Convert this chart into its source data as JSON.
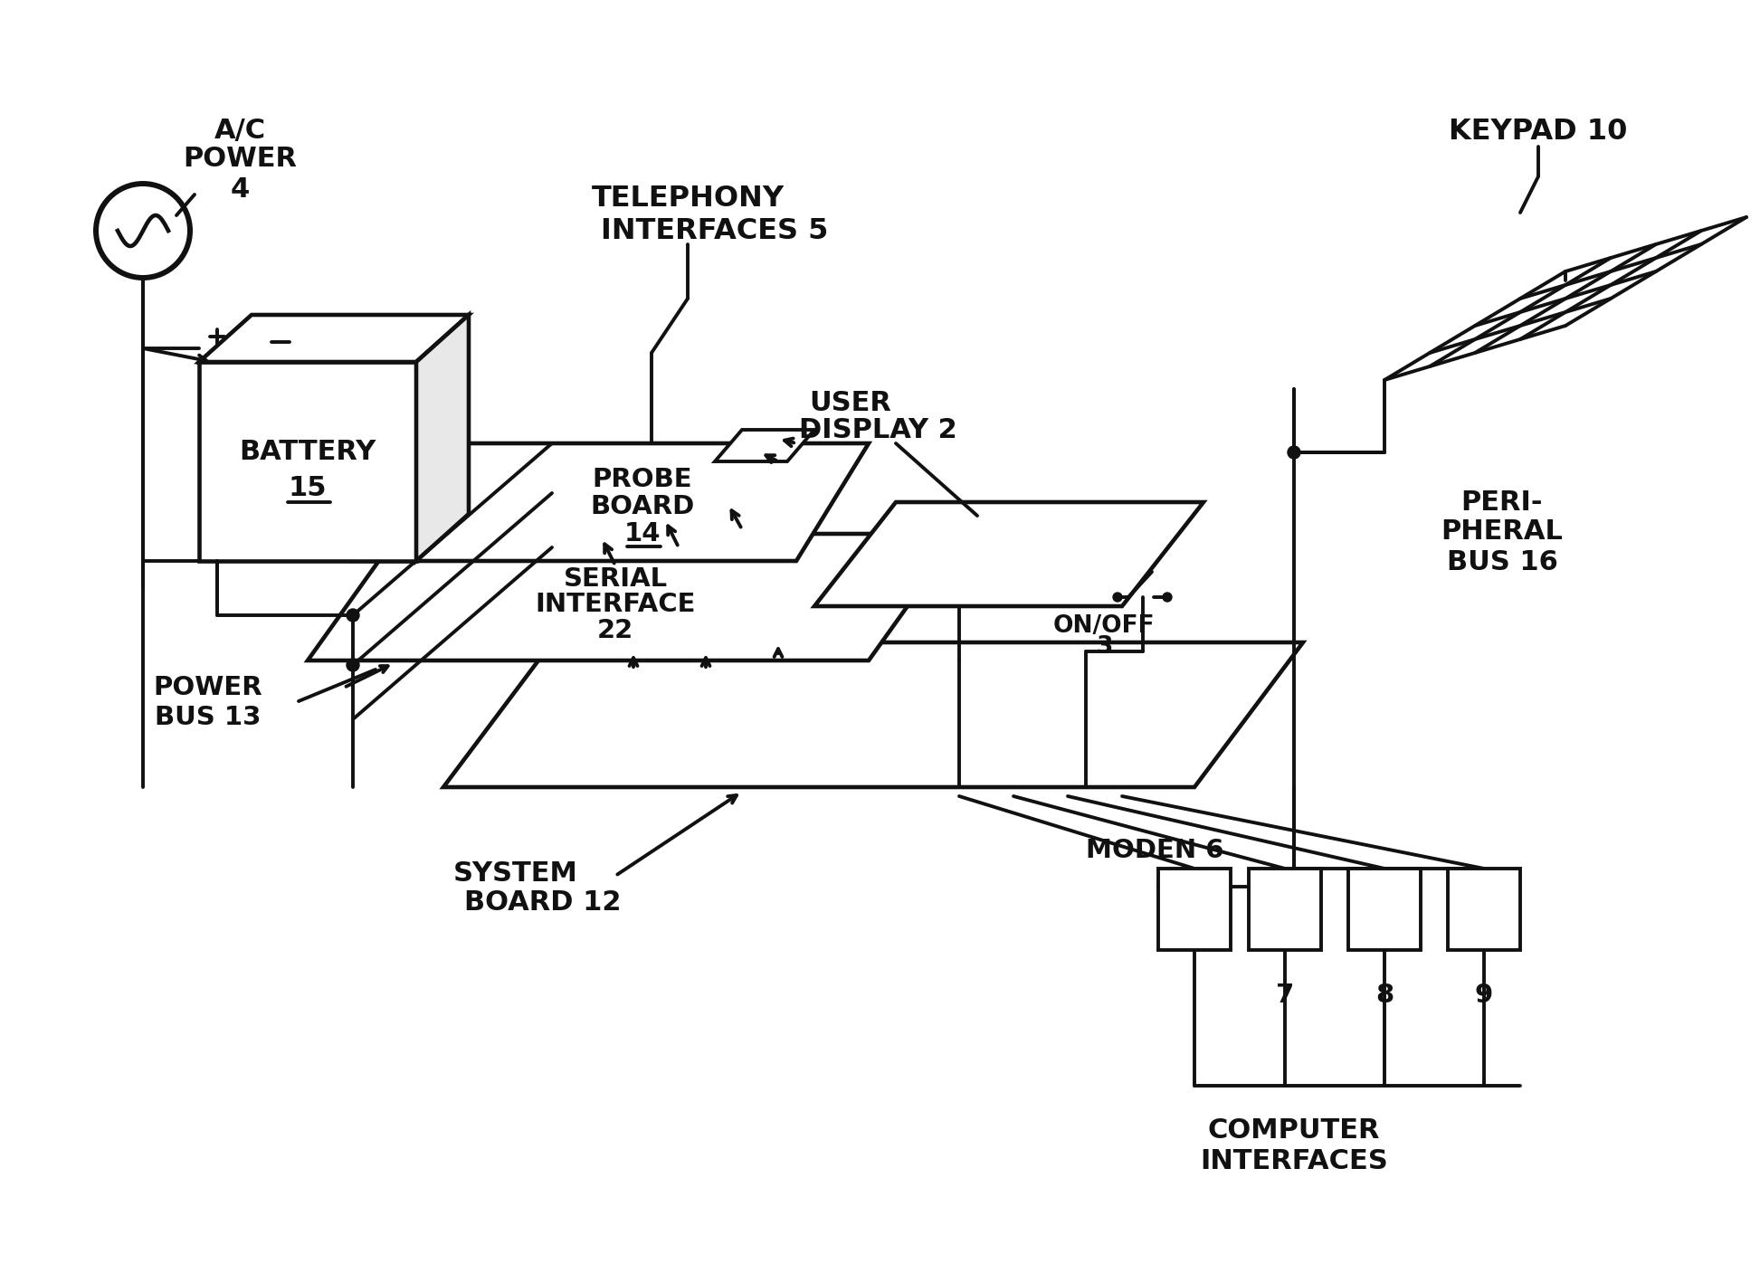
{
  "bg_color": "#ffffff",
  "line_color": "#111111",
  "text_color": "#111111",
  "fig_width": 19.45,
  "fig_height": 14.07,
  "lw": 2.8,
  "labels": {
    "ac_power_line1": "A/C",
    "ac_power_line2": "POWER",
    "ac_power_line3": "4",
    "battery_line1": "BATTERY",
    "battery_line2": "15",
    "probe_line1": "PROBE",
    "probe_line2": "BOARD",
    "probe_line3": "14",
    "serial_line1": "SERIAL",
    "serial_line2": "INTERFACE",
    "serial_line3": "22",
    "system_line1": "SYSTEM",
    "system_line2": "BOARD 12",
    "telephony_line1": "TELEPHONY",
    "telephony_line2": "INTERFACES 5",
    "user_display_line1": "USER",
    "user_display_line2": "DISPLAY 2",
    "on_off_line1": "ON/OFF",
    "on_off_line2": "3",
    "keypad": "KEYPAD 10",
    "power_bus_line1": "POWER",
    "power_bus_line2": "BUS 13",
    "modem": "MODEN 6",
    "computer_line1": "COMPUTER",
    "computer_line2": "INTERFACES",
    "peri_line1": "PERI-",
    "peri_line2": "PHERAL",
    "peri_line3": "BUS 16",
    "num7": "7",
    "num8": "8",
    "num9": "9"
  }
}
